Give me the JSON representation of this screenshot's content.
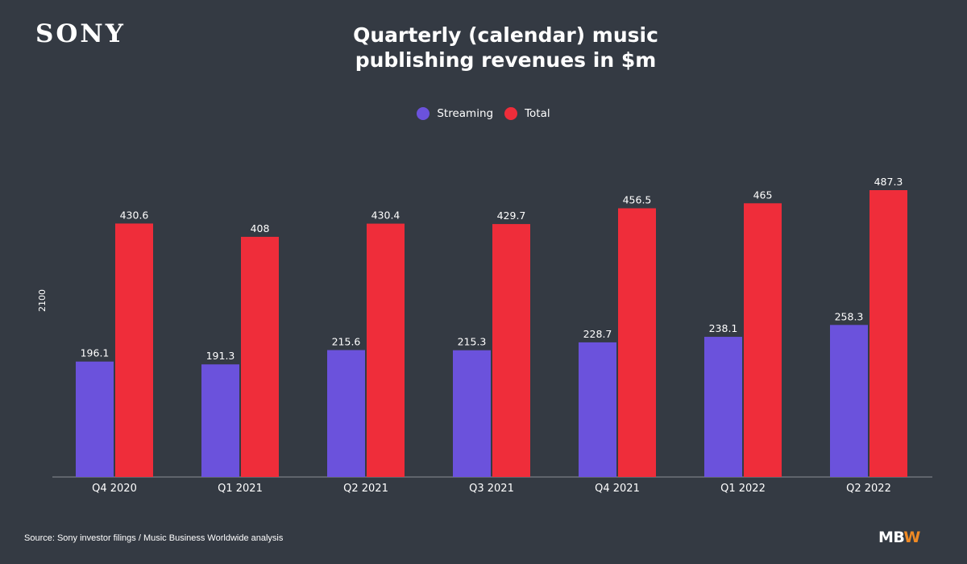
{
  "brand": "SONY",
  "title_lines": [
    "Quarterly (calendar) music",
    "publishing revenues in $m"
  ],
  "source": "Source: Sony investor filings / Music Business Worldwide analysis",
  "footer_logo": {
    "main": "MB",
    "accent": "W"
  },
  "colors": {
    "streaming": "#6b52dc",
    "total": "#ef2d3a",
    "background": "#343a43",
    "accent": "#f08a24"
  },
  "chart_data": {
    "type": "bar",
    "title": "Quarterly (calendar) music publishing revenues in $m",
    "categories": [
      "Q4 2020",
      "Q1 2021",
      "Q2 2021",
      "Q3 2021",
      "Q4 2021",
      "Q1 2022",
      "Q2 2022"
    ],
    "series": [
      {
        "name": "Streaming",
        "values": [
          196.1,
          191.3,
          215.6,
          215.3,
          228.7,
          238.1,
          258.3
        ]
      },
      {
        "name": "Total",
        "values": [
          430.6,
          408,
          430.4,
          429.7,
          456.5,
          465,
          487.3
        ]
      }
    ],
    "ylabel": "2100",
    "ylim": [
      0,
      487.3
    ],
    "grid": false,
    "legend": "top-center"
  }
}
